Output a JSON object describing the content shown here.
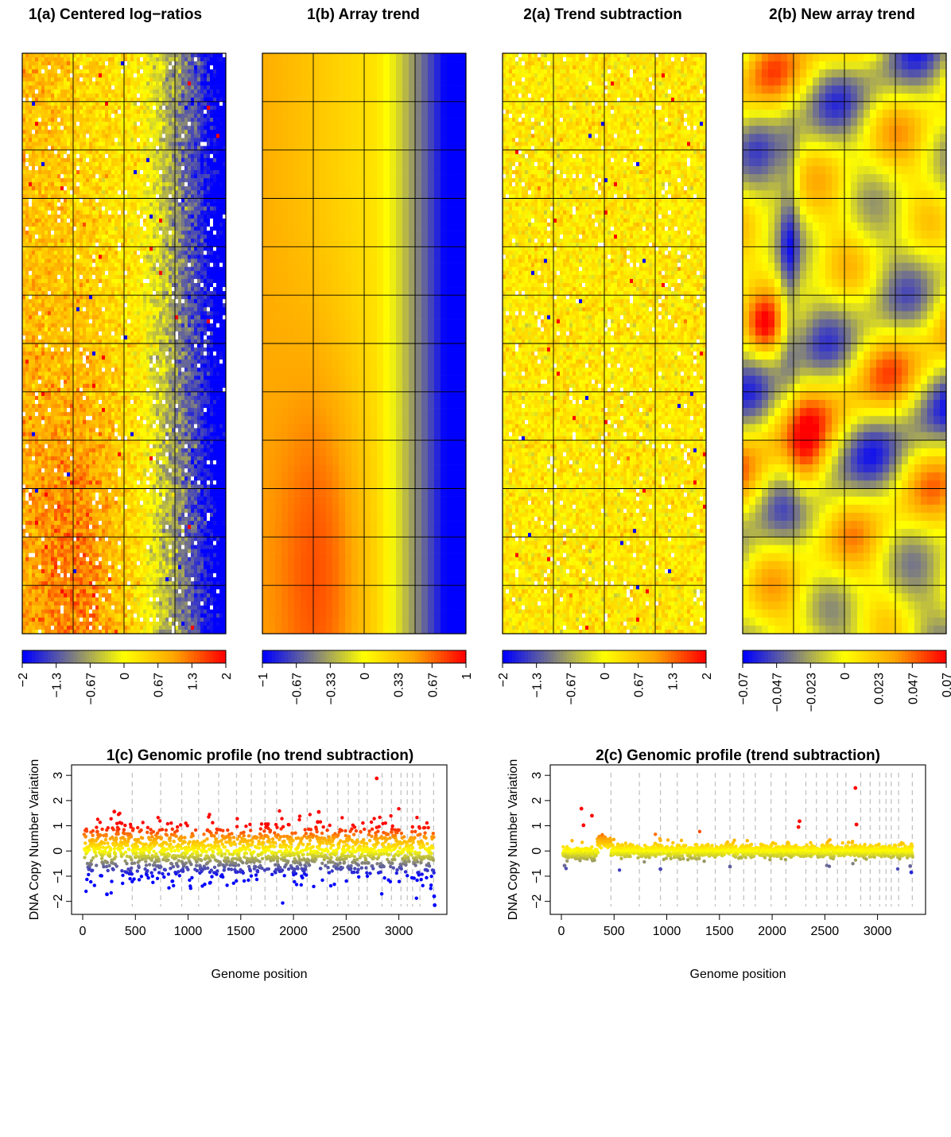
{
  "colors": {
    "scale": [
      "#0000FF",
      "#7F7F7F",
      "#FFFF00",
      "#FFA500",
      "#FF0000"
    ],
    "gridline": "#000000",
    "vline": "#BEBEBE"
  },
  "panels": [
    {
      "title": "1(a) Centered log−ratios",
      "pattern": "raw",
      "colorbar_ticks": [
        "−2",
        "−1.3",
        "−0.67",
        "0",
        "0.67",
        "1.3",
        "2"
      ]
    },
    {
      "title": "1(b) Array trend",
      "pattern": "trend",
      "colorbar_ticks": [
        "−1",
        "−0.67",
        "−0.33",
        "0",
        "0.33",
        "0.67",
        "1"
      ]
    },
    {
      "title": "2(a) Trend subtraction",
      "pattern": "residual",
      "colorbar_ticks": [
        "−2",
        "−1.3",
        "−0.67",
        "0",
        "0.67",
        "1.3",
        "2"
      ]
    },
    {
      "title": "2(b) New array trend",
      "pattern": "newtrend",
      "colorbar_ticks": [
        "−0.07",
        "−0.047",
        "−0.023",
        "0",
        "0.023",
        "0.047",
        "0.07"
      ]
    }
  ],
  "chart_data": [
    {
      "type": "scatter",
      "title": "1(c) Genomic profile (no trend subtraction)",
      "xlabel": "Genome position",
      "ylabel": "DNA Copy Number Variation",
      "xlim": [
        0,
        3350
      ],
      "ylim": [
        -2.2,
        3.1
      ],
      "x_ticks": [
        0,
        500,
        1000,
        1500,
        2000,
        2500,
        3000
      ],
      "y_ticks": [
        -2,
        -1,
        0,
        1,
        2,
        3
      ],
      "chromosome_boundaries": [
        470,
        740,
        940,
        1100,
        1290,
        1460,
        1600,
        1730,
        1840,
        1990,
        2130,
        2320,
        2420,
        2520,
        2620,
        2700,
        2840,
        2930,
        3020,
        3080,
        3130,
        3200,
        3330
      ],
      "series": [
        {
          "pattern": "noisy",
          "noise_sd": 0.55,
          "mean": -0.05,
          "segments": [
            {
              "x0": 300,
              "x1": 400,
              "shift": 0.25
            }
          ],
          "outliers": [
            {
              "x": 2790,
              "y": 2.88
            },
            {
              "x": 300,
              "y": 1.56
            },
            {
              "x": 2240,
              "y": 1.55
            },
            {
              "x": 2230,
              "y": 1.15
            },
            {
              "x": 230,
              "y": -1.72
            },
            {
              "x": 3340,
              "y": -2.15
            },
            {
              "x": 3335,
              "y": -1.8
            }
          ]
        }
      ]
    },
    {
      "type": "scatter",
      "title": "2(c) Genomic profile (trend subtraction)",
      "xlabel": "Genome position",
      "ylabel": "DNA Copy Number Variation",
      "xlim": [
        0,
        3350
      ],
      "ylim": [
        -2.2,
        3.1
      ],
      "x_ticks": [
        0,
        500,
        1000,
        1500,
        2000,
        2500,
        3000
      ],
      "y_ticks": [
        -2,
        -1,
        0,
        1,
        2,
        3
      ],
      "chromosome_boundaries": [
        470,
        740,
        940,
        1100,
        1290,
        1460,
        1600,
        1730,
        1840,
        1990,
        2130,
        2320,
        2420,
        2520,
        2620,
        2700,
        2840,
        2930,
        3020,
        3080,
        3130,
        3200,
        3330
      ],
      "series": [
        {
          "pattern": "clean",
          "noise_sd": 0.13,
          "mean": 0.0,
          "segments": [
            {
              "x0": 0,
              "x1": 340,
              "shift": -0.12
            },
            {
              "x0": 340,
              "x1": 470,
              "shift": 0.35
            }
          ],
          "outliers": [
            {
              "x": 190,
              "y": 1.68
            },
            {
              "x": 290,
              "y": 1.4
            },
            {
              "x": 210,
              "y": 1.02
            },
            {
              "x": 2790,
              "y": 2.5
            },
            {
              "x": 2800,
              "y": 1.05
            },
            {
              "x": 2260,
              "y": 1.18
            },
            {
              "x": 2250,
              "y": 0.95
            },
            {
              "x": 3320,
              "y": -0.85
            },
            {
              "x": 3310,
              "y": -0.6
            },
            {
              "x": 30,
              "y": -0.58
            },
            {
              "x": 940,
              "y": -0.72
            },
            {
              "x": 1600,
              "y": -0.62
            }
          ]
        }
      ]
    }
  ]
}
